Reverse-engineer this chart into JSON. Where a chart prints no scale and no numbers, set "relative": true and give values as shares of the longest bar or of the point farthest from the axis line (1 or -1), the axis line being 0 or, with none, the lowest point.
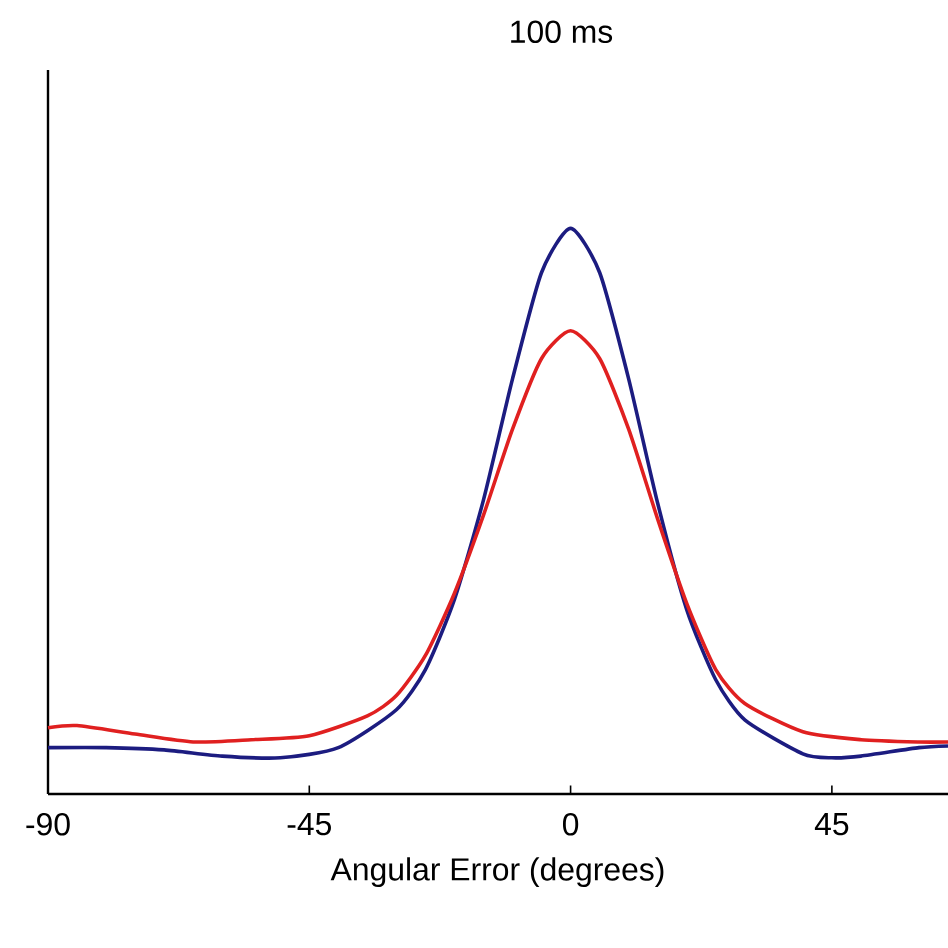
{
  "chart_data": {
    "type": "line",
    "title": "100 ms",
    "xlabel": "Angular Error (degrees)",
    "relative": true,
    "xlim": [
      -90,
      65
    ],
    "xticks": [
      -90,
      -45,
      0,
      45
    ],
    "grid": false,
    "marker": "none",
    "line_style": "solid",
    "series": [
      {
        "color": "#1c1c80",
        "x": [
          -90,
          -80,
          -70,
          -60,
          -50,
          -40,
          -30,
          -25,
          -20,
          -15,
          -10,
          -5,
          0,
          5,
          10,
          15,
          20,
          25,
          30,
          40,
          45,
          50,
          60,
          65
        ],
        "values": [
          0.082,
          0.082,
          0.078,
          0.067,
          0.064,
          0.082,
          0.149,
          0.22,
          0.344,
          0.52,
          0.734,
          0.922,
          1,
          0.922,
          0.734,
          0.514,
          0.326,
          0.202,
          0.131,
          0.071,
          0.064,
          0.067,
          0.082,
          0.085
        ]
      },
      {
        "color": "#e02020",
        "x": [
          -90,
          -85,
          -75,
          -65,
          -55,
          -45,
          -35,
          -30,
          -25,
          -20,
          -15,
          -10,
          -5,
          0,
          5,
          10,
          15,
          20,
          25,
          30,
          40,
          50,
          60,
          65
        ],
        "values": [
          0.117,
          0.121,
          0.106,
          0.092,
          0.096,
          0.103,
          0.138,
          0.174,
          0.245,
          0.355,
          0.493,
          0.645,
          0.77,
          0.819,
          0.77,
          0.645,
          0.486,
          0.337,
          0.22,
          0.16,
          0.11,
          0.096,
          0.092,
          0.092
        ]
      }
    ]
  }
}
